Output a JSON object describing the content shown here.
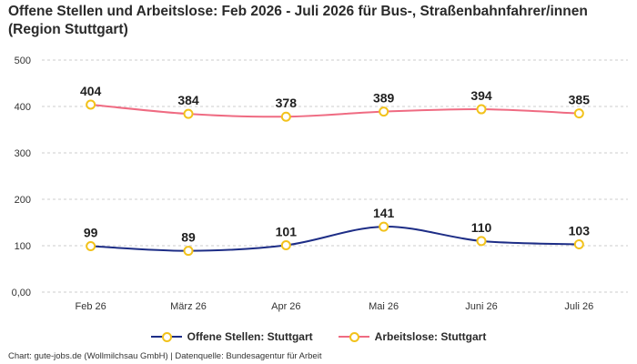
{
  "title": "Offene Stellen und Arbeitslose: Feb 2026 - Juli 2026 für Bus-, Straßenbahnfahrer/innen (Region Stuttgart)",
  "footer": "Chart: gute-jobs.de (Wollmilchsau GmbH) | Datenquelle: Bundesagentur für Arbeit",
  "colors": {
    "offene": "#1d2d86",
    "arbeitslose": "#ef6b82",
    "marker": "#f2c21b",
    "grid": "#cccccc"
  },
  "chart_data": {
    "type": "line",
    "categories": [
      "Feb 26",
      "März 26",
      "Apr 26",
      "Mai 26",
      "Juni 26",
      "Juli 26"
    ],
    "ylim": [
      0,
      500
    ],
    "yticks": [
      0,
      100,
      200,
      300,
      400,
      500
    ],
    "ytick_labels": [
      "0,00",
      "100",
      "200",
      "300",
      "400",
      "500"
    ],
    "grid": true,
    "legend_position": "bottom",
    "series": [
      {
        "name": "Offene Stellen: Stuttgart",
        "values": [
          99,
          89,
          101,
          141,
          110,
          103
        ]
      },
      {
        "name": "Arbeitslose: Stuttgart",
        "values": [
          404,
          384,
          378,
          389,
          394,
          385
        ]
      }
    ]
  }
}
